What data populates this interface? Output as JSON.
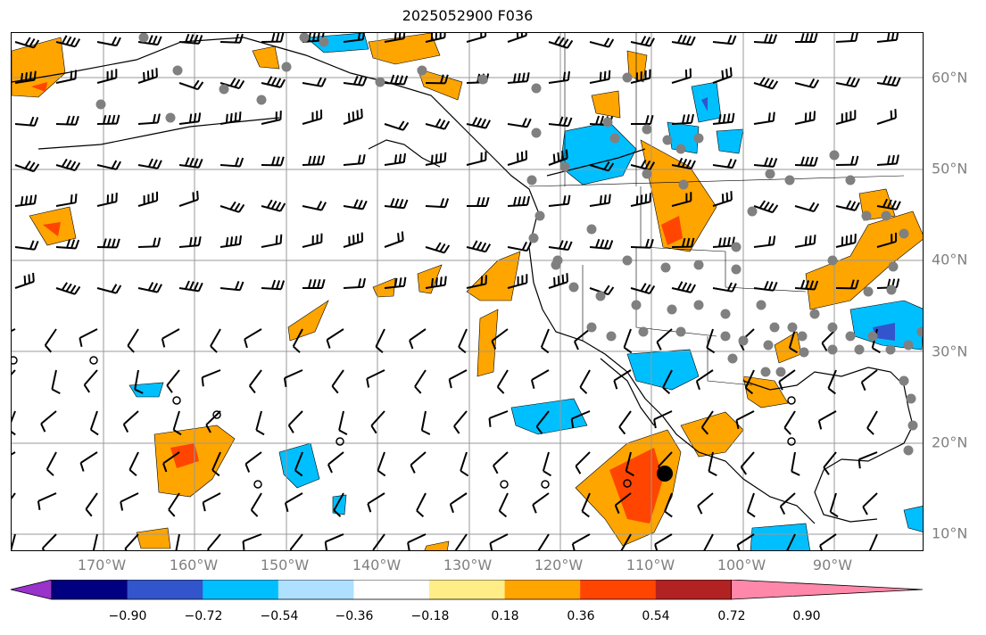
{
  "title": "2025052900 F036",
  "lon_labels": [
    "170°W",
    "160°W",
    "150°W",
    "140°W",
    "130°W",
    "120°W",
    "110°W",
    "100°W",
    "90°W"
  ],
  "lat_labels": [
    "60°N",
    "50°N",
    "40°N",
    "30°N",
    "20°N",
    "10°N"
  ],
  "colorbar": {
    "ticks": [
      "−0.90",
      "−0.72",
      "−0.54",
      "−0.36",
      "−0.18",
      "0.18",
      "0.36",
      "0.54",
      "0.72",
      "0.90"
    ],
    "colors": [
      "#9933cc",
      "#000080",
      "#3355cc",
      "#00bfff",
      "#aee0ff",
      "#ffffff",
      "#ffee88",
      "#ffa500",
      "#ff4500",
      "#b22222",
      "#ff88aa"
    ]
  },
  "legend_colors": {
    "neg_light": "#aee0ff",
    "neg": "#00bfff",
    "neg_dark": "#3355cc",
    "pos_light": "#ffee88",
    "pos": "#ffa500",
    "pos_dark": "#ff4500"
  }
}
